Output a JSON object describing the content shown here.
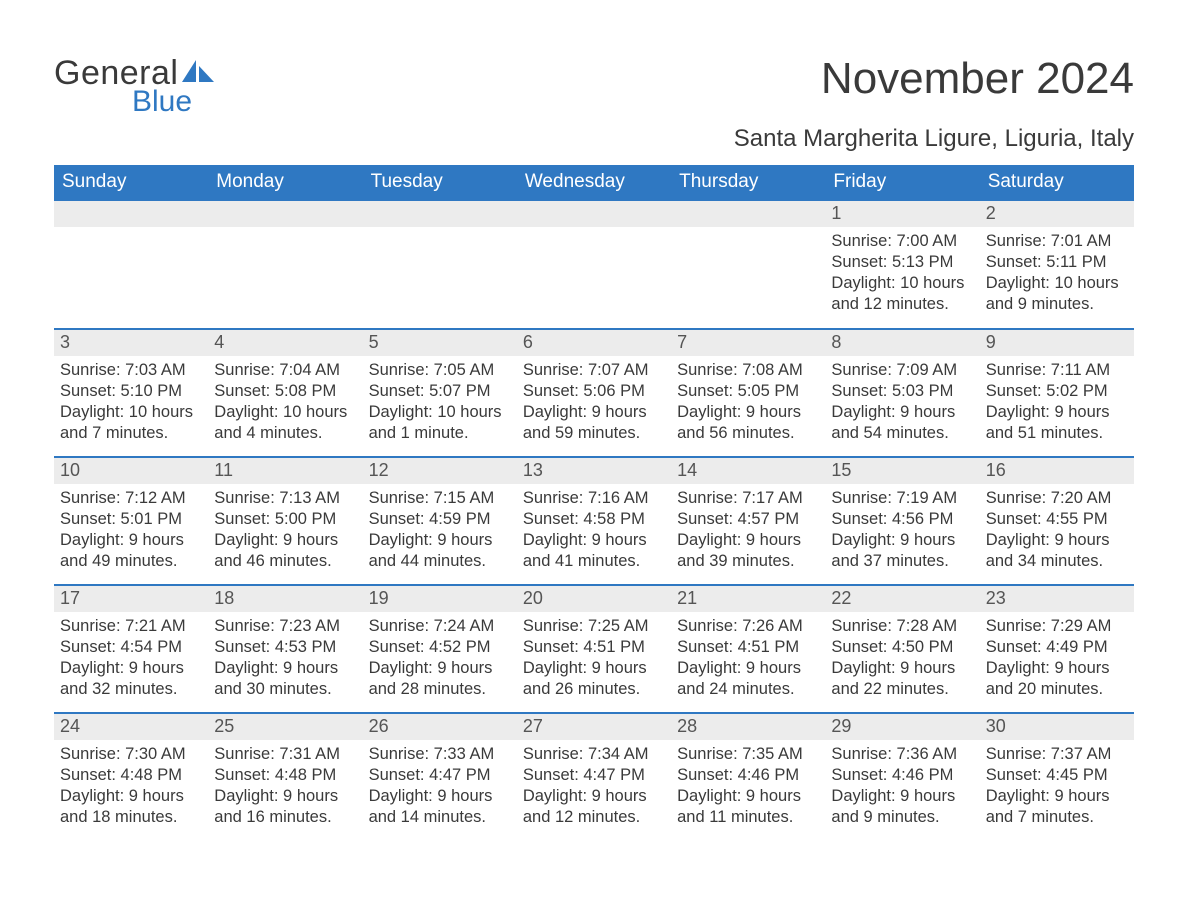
{
  "brand": {
    "word1": "General",
    "word2": "Blue",
    "sail_color": "#2f78c2",
    "text_color": "#3a3a3a"
  },
  "title": "November 2024",
  "subtitle": "Santa Margherita Ligure, Liguria, Italy",
  "header_bg": "#2f78c2",
  "header_text_color": "#ffffff",
  "daynum_bg": "#ececec",
  "rule_color": "#2f78c2",
  "text_color": "#3a3a3a",
  "columns": [
    "Sunday",
    "Monday",
    "Tuesday",
    "Wednesday",
    "Thursday",
    "Friday",
    "Saturday"
  ],
  "weeks": [
    [
      null,
      null,
      null,
      null,
      null,
      {
        "n": "1",
        "sunrise": "7:00 AM",
        "sunset": "5:13 PM",
        "daylight": "10 hours and 12 minutes."
      },
      {
        "n": "2",
        "sunrise": "7:01 AM",
        "sunset": "5:11 PM",
        "daylight": "10 hours and 9 minutes."
      }
    ],
    [
      {
        "n": "3",
        "sunrise": "7:03 AM",
        "sunset": "5:10 PM",
        "daylight": "10 hours and 7 minutes."
      },
      {
        "n": "4",
        "sunrise": "7:04 AM",
        "sunset": "5:08 PM",
        "daylight": "10 hours and 4 minutes."
      },
      {
        "n": "5",
        "sunrise": "7:05 AM",
        "sunset": "5:07 PM",
        "daylight": "10 hours and 1 minute."
      },
      {
        "n": "6",
        "sunrise": "7:07 AM",
        "sunset": "5:06 PM",
        "daylight": "9 hours and 59 minutes."
      },
      {
        "n": "7",
        "sunrise": "7:08 AM",
        "sunset": "5:05 PM",
        "daylight": "9 hours and 56 minutes."
      },
      {
        "n": "8",
        "sunrise": "7:09 AM",
        "sunset": "5:03 PM",
        "daylight": "9 hours and 54 minutes."
      },
      {
        "n": "9",
        "sunrise": "7:11 AM",
        "sunset": "5:02 PM",
        "daylight": "9 hours and 51 minutes."
      }
    ],
    [
      {
        "n": "10",
        "sunrise": "7:12 AM",
        "sunset": "5:01 PM",
        "daylight": "9 hours and 49 minutes."
      },
      {
        "n": "11",
        "sunrise": "7:13 AM",
        "sunset": "5:00 PM",
        "daylight": "9 hours and 46 minutes."
      },
      {
        "n": "12",
        "sunrise": "7:15 AM",
        "sunset": "4:59 PM",
        "daylight": "9 hours and 44 minutes."
      },
      {
        "n": "13",
        "sunrise": "7:16 AM",
        "sunset": "4:58 PM",
        "daylight": "9 hours and 41 minutes."
      },
      {
        "n": "14",
        "sunrise": "7:17 AM",
        "sunset": "4:57 PM",
        "daylight": "9 hours and 39 minutes."
      },
      {
        "n": "15",
        "sunrise": "7:19 AM",
        "sunset": "4:56 PM",
        "daylight": "9 hours and 37 minutes."
      },
      {
        "n": "16",
        "sunrise": "7:20 AM",
        "sunset": "4:55 PM",
        "daylight": "9 hours and 34 minutes."
      }
    ],
    [
      {
        "n": "17",
        "sunrise": "7:21 AM",
        "sunset": "4:54 PM",
        "daylight": "9 hours and 32 minutes."
      },
      {
        "n": "18",
        "sunrise": "7:23 AM",
        "sunset": "4:53 PM",
        "daylight": "9 hours and 30 minutes."
      },
      {
        "n": "19",
        "sunrise": "7:24 AM",
        "sunset": "4:52 PM",
        "daylight": "9 hours and 28 minutes."
      },
      {
        "n": "20",
        "sunrise": "7:25 AM",
        "sunset": "4:51 PM",
        "daylight": "9 hours and 26 minutes."
      },
      {
        "n": "21",
        "sunrise": "7:26 AM",
        "sunset": "4:51 PM",
        "daylight": "9 hours and 24 minutes."
      },
      {
        "n": "22",
        "sunrise": "7:28 AM",
        "sunset": "4:50 PM",
        "daylight": "9 hours and 22 minutes."
      },
      {
        "n": "23",
        "sunrise": "7:29 AM",
        "sunset": "4:49 PM",
        "daylight": "9 hours and 20 minutes."
      }
    ],
    [
      {
        "n": "24",
        "sunrise": "7:30 AM",
        "sunset": "4:48 PM",
        "daylight": "9 hours and 18 minutes."
      },
      {
        "n": "25",
        "sunrise": "7:31 AM",
        "sunset": "4:48 PM",
        "daylight": "9 hours and 16 minutes."
      },
      {
        "n": "26",
        "sunrise": "7:33 AM",
        "sunset": "4:47 PM",
        "daylight": "9 hours and 14 minutes."
      },
      {
        "n": "27",
        "sunrise": "7:34 AM",
        "sunset": "4:47 PM",
        "daylight": "9 hours and 12 minutes."
      },
      {
        "n": "28",
        "sunrise": "7:35 AM",
        "sunset": "4:46 PM",
        "daylight": "9 hours and 11 minutes."
      },
      {
        "n": "29",
        "sunrise": "7:36 AM",
        "sunset": "4:46 PM",
        "daylight": "9 hours and 9 minutes."
      },
      {
        "n": "30",
        "sunrise": "7:37 AM",
        "sunset": "4:45 PM",
        "daylight": "9 hours and 7 minutes."
      }
    ]
  ],
  "labels": {
    "sunrise": "Sunrise:",
    "sunset": "Sunset:",
    "daylight": "Daylight:"
  }
}
